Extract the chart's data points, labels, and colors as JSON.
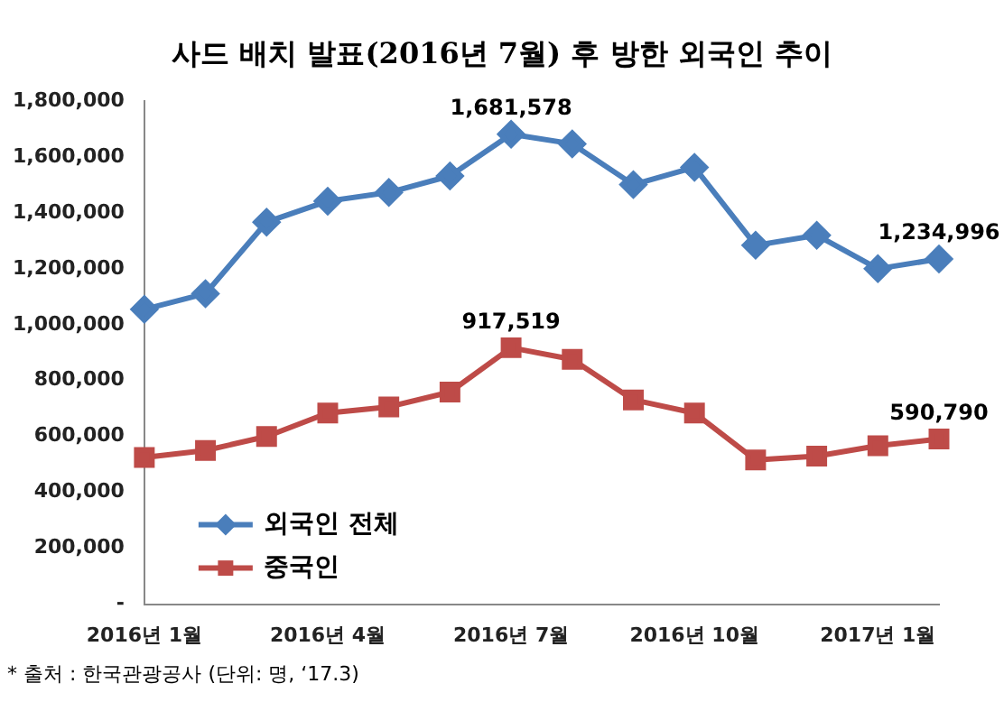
{
  "chart_data": {
    "type": "line",
    "title": "사드 배치 발표(2016년 7월) 후 방한 외국인 추이",
    "categories": [
      "2016년 1월",
      null,
      null,
      "2016년 4월",
      null,
      null,
      "2016년 7월",
      null,
      null,
      "2016년 10월",
      null,
      null,
      "2017년 1월",
      null
    ],
    "series": [
      {
        "name": "외국인 전체",
        "color": "#4a7ebb",
        "marker": "diamond",
        "values": [
          1055000,
          1111000,
          1367000,
          1442000,
          1473000,
          1532000,
          1681578,
          1647000,
          1501000,
          1563000,
          1284000,
          1320000,
          1200000,
          1234996
        ],
        "value_labels": [
          null,
          null,
          null,
          null,
          null,
          null,
          "1,681,578",
          null,
          null,
          null,
          null,
          null,
          null,
          "1,234,996"
        ]
      },
      {
        "name": "중국인",
        "color": "#be4b48",
        "marker": "square",
        "values": [
          525000,
          550000,
          600000,
          684000,
          706000,
          759000,
          917519,
          876000,
          731000,
          684000,
          516000,
          530000,
          567000,
          590790
        ],
        "value_labels": [
          null,
          null,
          null,
          null,
          null,
          null,
          "917,519",
          null,
          null,
          null,
          null,
          null,
          null,
          "590,790"
        ]
      }
    ],
    "ylim": [
      0,
      1800000
    ],
    "yticks": [
      {
        "value": 0,
        "label": "-"
      },
      {
        "value": 200000,
        "label": "200,000"
      },
      {
        "value": 400000,
        "label": "400,000"
      },
      {
        "value": 600000,
        "label": "600,000"
      },
      {
        "value": 800000,
        "label": "800,000"
      },
      {
        "value": 1000000,
        "label": "1,000,000"
      },
      {
        "value": 1200000,
        "label": "1,200,000"
      },
      {
        "value": 1400000,
        "label": "1,400,000"
      },
      {
        "value": 1600000,
        "label": "1,600,000"
      },
      {
        "value": 1800000,
        "label": "1,800,000"
      }
    ],
    "grid": false,
    "legend": "bottom left",
    "line_style": "solid",
    "annotations": [
      "* 출처 : 한국관광공사 (단위: 명, ‘17.3)"
    ]
  }
}
